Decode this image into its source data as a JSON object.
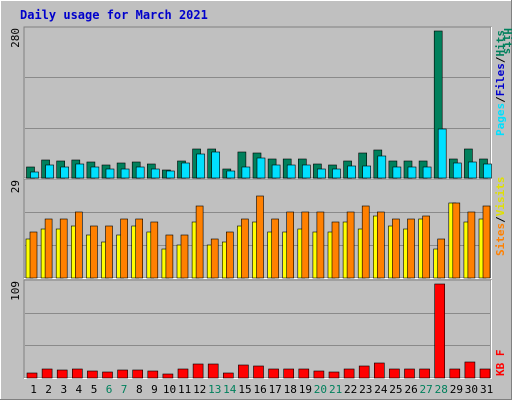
{
  "title": "Daily usage for March 2021",
  "colors": {
    "background": "#c0c0c0",
    "title": "#0000cc",
    "hits": "#00805c",
    "files": "#00e0ff",
    "pages": "#00e0ff",
    "sites": "#ff8000",
    "visits": "#ffff00",
    "kbytes": "#ff0000",
    "weekend_day_label": "#00805c",
    "weekday_day_label": "#000000"
  },
  "chart_data": [
    {
      "type": "bar",
      "panel": "hits-files-pages",
      "y_max_label": "280",
      "legend": [
        "Pages",
        "/",
        "Files",
        "/",
        "Hits"
      ],
      "categories": [
        "1",
        "2",
        "3",
        "4",
        "5",
        "6",
        "7",
        "8",
        "9",
        "10",
        "11",
        "12",
        "13",
        "14",
        "15",
        "16",
        "17",
        "18",
        "19",
        "20",
        "21",
        "22",
        "23",
        "24",
        "25",
        "26",
        "27",
        "28",
        "29",
        "30",
        "31"
      ],
      "ylim": [
        0,
        280
      ],
      "series": [
        {
          "name": "Hits",
          "values": [
            20,
            35,
            32,
            35,
            31,
            25,
            28,
            30,
            26,
            16,
            32,
            55,
            55,
            17,
            49,
            48,
            37,
            37,
            37,
            27,
            25,
            33,
            47,
            53,
            33,
            32,
            33,
            280,
            37,
            56,
            36
          ]
        },
        {
          "name": "Files",
          "values": [
            12,
            24,
            20,
            26,
            20,
            17,
            18,
            21,
            18,
            13,
            28,
            45,
            49,
            14,
            21,
            38,
            25,
            24,
            24,
            17,
            17,
            22,
            23,
            41,
            20,
            20,
            21,
            93,
            28,
            31,
            26
          ]
        }
      ]
    },
    {
      "type": "bar",
      "panel": "visits-sites",
      "y_max_label": "29",
      "legend": [
        "Sites",
        "/",
        "Visits"
      ],
      "categories": [
        "1",
        "2",
        "3",
        "4",
        "5",
        "6",
        "7",
        "8",
        "9",
        "10",
        "11",
        "12",
        "13",
        "14",
        "15",
        "16",
        "17",
        "18",
        "19",
        "20",
        "21",
        "22",
        "23",
        "24",
        "25",
        "26",
        "27",
        "28",
        "29",
        "30",
        "31"
      ],
      "ylim": [
        0,
        29
      ],
      "series": [
        {
          "name": "Visits",
          "values": [
            12,
            15,
            15,
            16,
            13,
            11,
            13,
            16,
            14,
            9,
            10,
            17,
            10,
            11,
            16,
            17,
            14,
            14,
            15,
            14,
            14,
            17,
            15,
            19,
            16,
            15,
            18,
            9,
            23,
            17,
            18
          ]
        },
        {
          "name": "Sites",
          "values": [
            14,
            18,
            18,
            20,
            16,
            16,
            18,
            18,
            17,
            13,
            13,
            22,
            12,
            14,
            18,
            25,
            18,
            20,
            20,
            20,
            17,
            20,
            22,
            20,
            18,
            18,
            19,
            12,
            23,
            20,
            22
          ]
        }
      ]
    },
    {
      "type": "bar",
      "panel": "kbytes",
      "y_max_label": "109",
      "legend": [
        "KB",
        "F"
      ],
      "categories": [
        "1",
        "2",
        "3",
        "4",
        "5",
        "6",
        "7",
        "8",
        "9",
        "10",
        "11",
        "12",
        "13",
        "14",
        "15",
        "16",
        "17",
        "18",
        "19",
        "20",
        "21",
        "22",
        "23",
        "24",
        "25",
        "26",
        "27",
        "28",
        "29",
        "30",
        "31"
      ],
      "ylim": [
        0,
        109
      ],
      "series": [
        {
          "name": "KBytes",
          "values": [
            6,
            11,
            9,
            11,
            8,
            7,
            9,
            9,
            8,
            5,
            11,
            16,
            16,
            6,
            15,
            14,
            11,
            11,
            11,
            8,
            7,
            11,
            14,
            17,
            10,
            10,
            11,
            109,
            11,
            18,
            11
          ]
        }
      ]
    }
  ],
  "x_axis": {
    "labels": [
      "1",
      "2",
      "3",
      "4",
      "5",
      "6",
      "7",
      "8",
      "9",
      "10",
      "11",
      "12",
      "13",
      "14",
      "15",
      "16",
      "17",
      "18",
      "19",
      "20",
      "21",
      "22",
      "23",
      "24",
      "25",
      "26",
      "27",
      "28",
      "29",
      "30",
      "31"
    ],
    "weekend_days": [
      "6",
      "7",
      "13",
      "14",
      "20",
      "21",
      "27",
      "28"
    ]
  }
}
